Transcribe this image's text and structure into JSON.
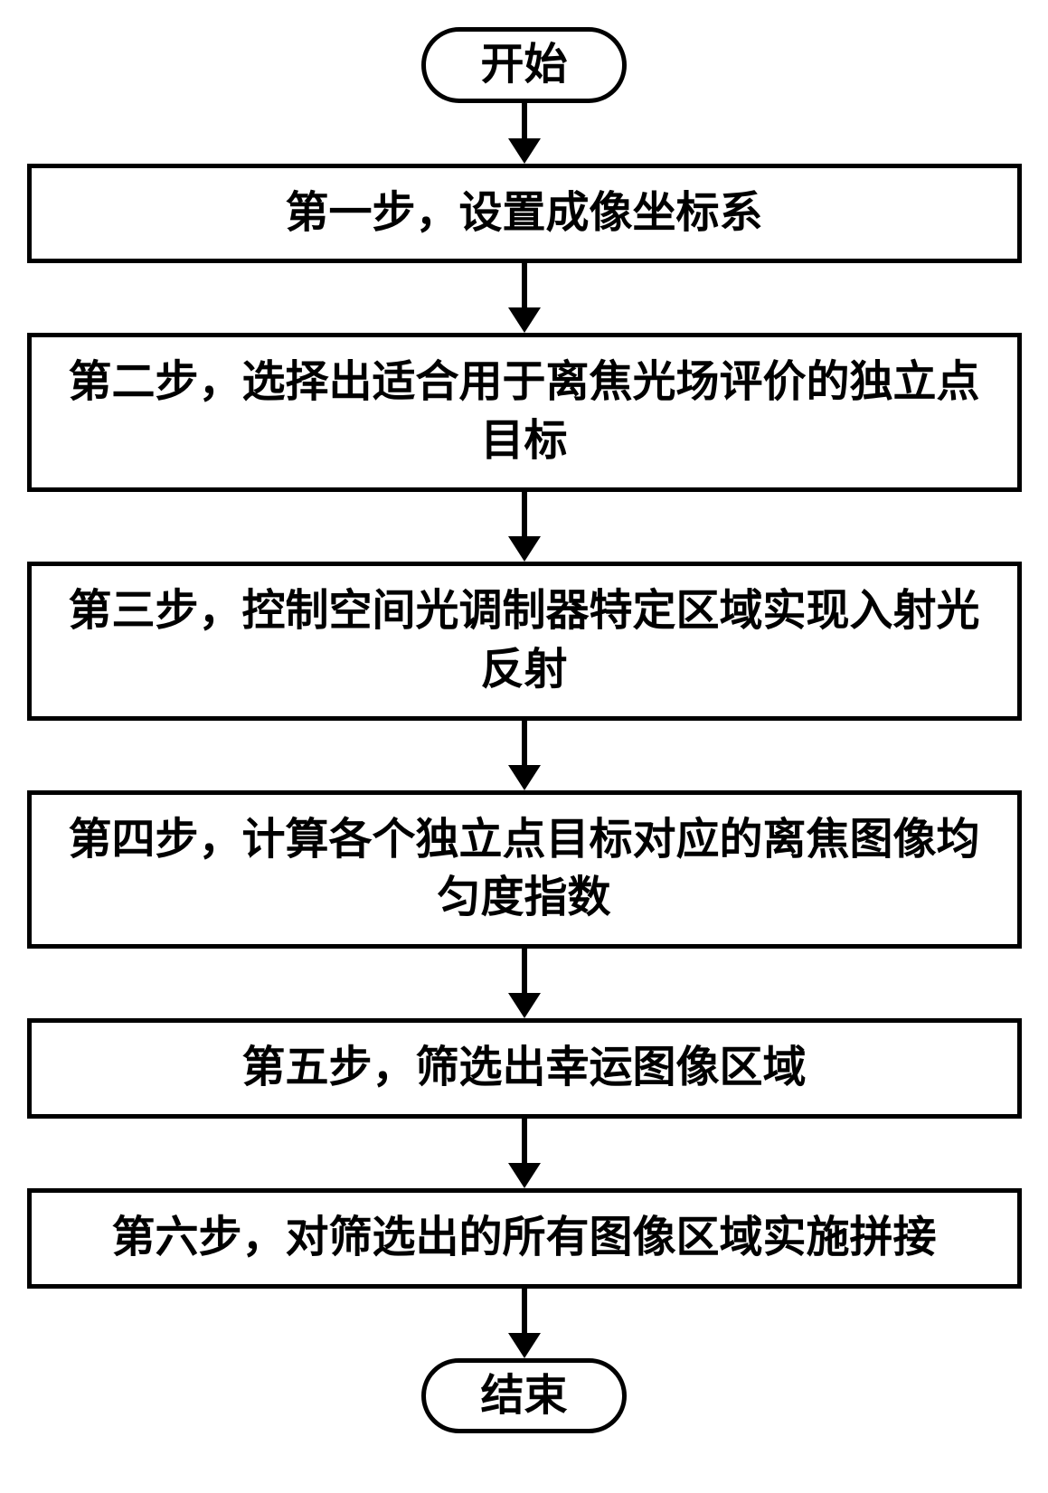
{
  "flowchart": {
    "start": "开始",
    "end": "结束",
    "steps": [
      "第一步，设置成像坐标系",
      "第二步，选择出适合用于离焦光场评价的独立点目标",
      "第三步，控制空间光调制器特定区域实现入射光反射",
      "第四步，计算各个独立点目标对应的离焦图像均匀度指数",
      "第五步，筛选出幸运图像区域",
      "第六步，对筛选出的所有图像区域实施拼接"
    ],
    "style": {
      "border_color": "#000000",
      "border_width": 5,
      "background_color": "#ffffff",
      "font_size": 48,
      "font_weight": "bold",
      "font_family": "SimSun",
      "terminator_radius": 50,
      "arrow_line_width": 6,
      "arrow_head_width": 36,
      "arrow_head_height": 28,
      "arrow_length_after_start": 40,
      "arrow_length_between_steps": 50,
      "arrow_length_before_end": 50,
      "container_width": 1100
    }
  }
}
